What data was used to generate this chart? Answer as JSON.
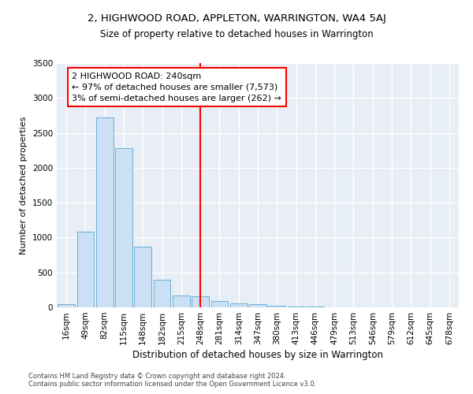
{
  "title": "2, HIGHWOOD ROAD, APPLETON, WARRINGTON, WA4 5AJ",
  "subtitle": "Size of property relative to detached houses in Warrington",
  "xlabel": "Distribution of detached houses by size in Warrington",
  "ylabel": "Number of detached properties",
  "bar_color": "#cce0f5",
  "bar_edge_color": "#6aaed6",
  "background_color": "#e8eef5",
  "grid_color": "white",
  "categories": [
    "16sqm",
    "49sqm",
    "82sqm",
    "115sqm",
    "148sqm",
    "182sqm",
    "215sqm",
    "248sqm",
    "281sqm",
    "314sqm",
    "347sqm",
    "380sqm",
    "413sqm",
    "446sqm",
    "479sqm",
    "513sqm",
    "546sqm",
    "579sqm",
    "612sqm",
    "645sqm",
    "678sqm"
  ],
  "values": [
    50,
    1080,
    2720,
    2280,
    870,
    390,
    175,
    160,
    90,
    60,
    40,
    25,
    15,
    8,
    4,
    3,
    2,
    2,
    1,
    1,
    1
  ],
  "vline_color": "red",
  "vline_index": 7.5,
  "annotation_title": "2 HIGHWOOD ROAD: 240sqm",
  "annotation_line1": "← 97% of detached houses are smaller (7,573)",
  "annotation_line2": "3% of semi-detached houses are larger (262) →",
  "annotation_box_color": "white",
  "annotation_box_edge_color": "red",
  "footer_line1": "Contains HM Land Registry data © Crown copyright and database right 2024.",
  "footer_line2": "Contains public sector information licensed under the Open Government Licence v3.0.",
  "ylim": [
    0,
    3500
  ],
  "yticks": [
    0,
    500,
    1000,
    1500,
    2000,
    2500,
    3000,
    3500
  ],
  "title_fontsize": 9.5,
  "subtitle_fontsize": 8.5,
  "tick_fontsize": 7.5,
  "ylabel_fontsize": 8,
  "xlabel_fontsize": 8.5
}
